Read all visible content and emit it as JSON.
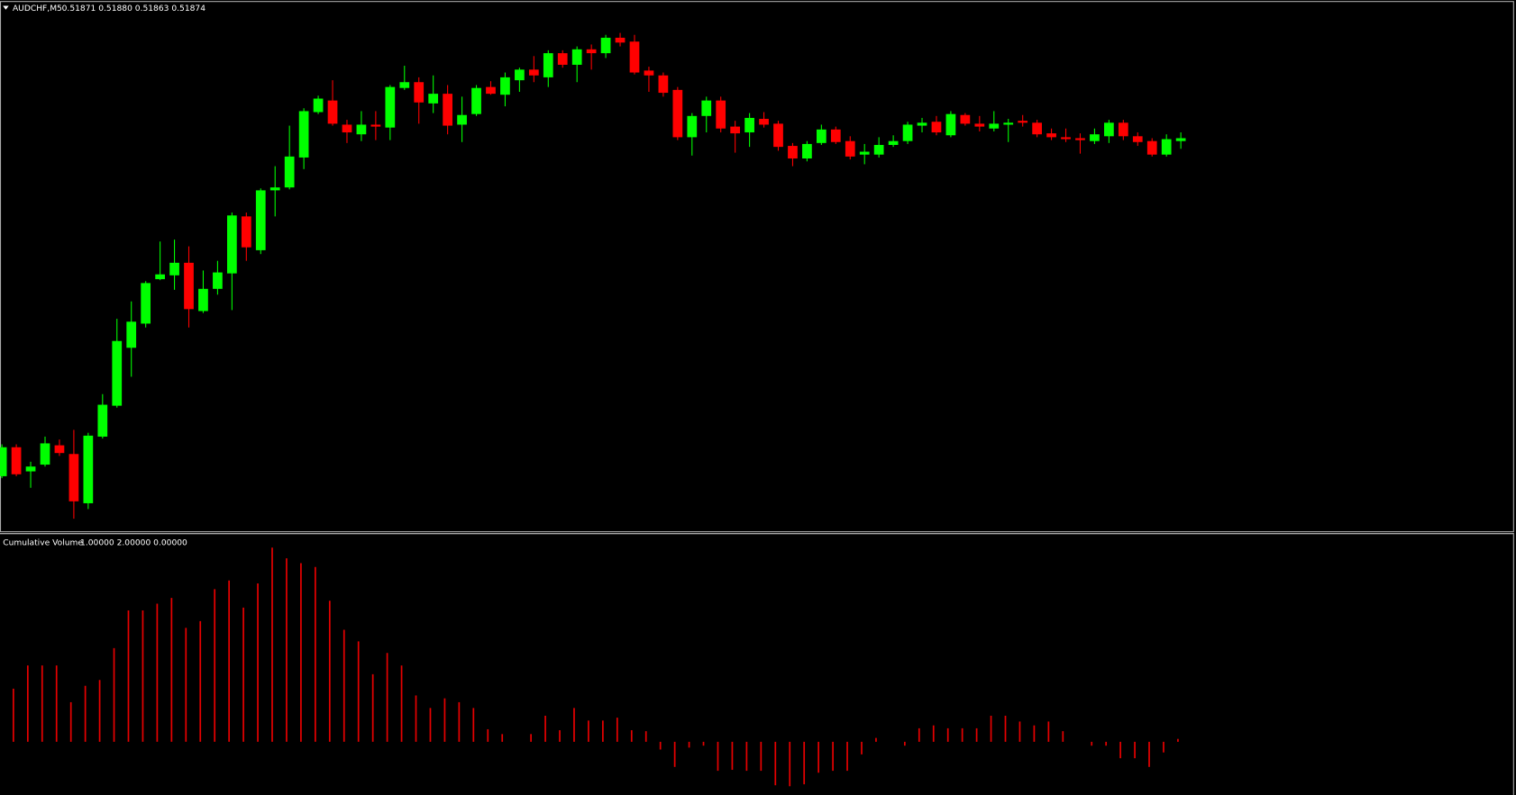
{
  "chart_data": [
    {
      "type": "candlestick",
      "title": "AUDCHF,M5",
      "quote": "0.51871 0.51880 0.51863 0.51874",
      "up_color": "#00ff00",
      "down_color": "#ff0000",
      "ylim": [
        0.51467,
        0.52017
      ],
      "open": [
        0.51524,
        0.51554,
        0.51529,
        0.51536,
        0.51556,
        0.51547,
        0.51496,
        0.51565,
        0.51597,
        0.51657,
        0.51682,
        0.51728,
        0.51732,
        0.51745,
        0.51695,
        0.51718,
        0.51734,
        0.51793,
        0.51758,
        0.5182,
        0.51823,
        0.51854,
        0.51901,
        0.51913,
        0.51888,
        0.51878,
        0.51888,
        0.51885,
        0.51926,
        0.51932,
        0.5191,
        0.5192,
        0.51888,
        0.51899,
        0.51927,
        0.51919,
        0.51934,
        0.51945,
        0.51937,
        0.51962,
        0.5195,
        0.51966,
        0.51962,
        0.51978,
        0.51974,
        0.51944,
        0.51939,
        0.51924,
        0.51875,
        0.51897,
        0.51913,
        0.51886,
        0.5188,
        0.51894,
        0.51889,
        0.51866,
        0.51853,
        0.51869,
        0.51883,
        0.51871,
        0.51857,
        0.51857,
        0.51867,
        0.51871,
        0.51887,
        0.51891,
        0.51877,
        0.51898,
        0.51889,
        0.51884,
        0.51888,
        0.51892,
        0.5189,
        0.51879,
        0.51875,
        0.51874,
        0.51871,
        0.51876,
        0.5189,
        0.51876,
        0.51871,
        0.51857,
        0.51871
      ],
      "high": [
        0.51557,
        0.51557,
        0.51539,
        0.51565,
        0.51562,
        0.51572,
        0.51569,
        0.51609,
        0.51687,
        0.51705,
        0.51726,
        0.51767,
        0.51769,
        0.51762,
        0.51737,
        0.51747,
        0.51797,
        0.51797,
        0.51822,
        0.51845,
        0.51887,
        0.51905,
        0.51918,
        0.51934,
        0.51893,
        0.51902,
        0.51902,
        0.51929,
        0.51949,
        0.51937,
        0.51939,
        0.51929,
        0.51917,
        0.51929,
        0.51933,
        0.51942,
        0.51947,
        0.51959,
        0.51965,
        0.51965,
        0.51969,
        0.51971,
        0.51981,
        0.51983,
        0.51981,
        0.51948,
        0.51942,
        0.51927,
        0.519,
        0.51917,
        0.51917,
        0.51892,
        0.519,
        0.51901,
        0.51892,
        0.51869,
        0.51871,
        0.51888,
        0.51886,
        0.51876,
        0.51868,
        0.51875,
        0.51877,
        0.51891,
        0.51895,
        0.51897,
        0.51902,
        0.519,
        0.51897,
        0.51902,
        0.51894,
        0.51898,
        0.51893,
        0.51884,
        0.51884,
        0.51879,
        0.51884,
        0.51893,
        0.51893,
        0.5188,
        0.51874,
        0.51878,
        0.5188
      ],
      "low": [
        0.51522,
        0.51524,
        0.51512,
        0.51534,
        0.51545,
        0.5148,
        0.5149,
        0.51563,
        0.51595,
        0.51627,
        0.51678,
        0.51727,
        0.51717,
        0.51678,
        0.51693,
        0.51712,
        0.51696,
        0.51747,
        0.51754,
        0.51793,
        0.51821,
        0.51842,
        0.51899,
        0.51887,
        0.51869,
        0.51871,
        0.51872,
        0.51872,
        0.51924,
        0.51889,
        0.519,
        0.51878,
        0.5187,
        0.51897,
        0.51919,
        0.51907,
        0.51922,
        0.51932,
        0.51927,
        0.51947,
        0.51932,
        0.51945,
        0.51957,
        0.51969,
        0.5194,
        0.51922,
        0.51917,
        0.51872,
        0.51856,
        0.5188,
        0.5188,
        0.51859,
        0.51865,
        0.51885,
        0.51861,
        0.51845,
        0.5185,
        0.51867,
        0.51868,
        0.51852,
        0.51847,
        0.51854,
        0.51865,
        0.51868,
        0.5188,
        0.51877,
        0.51875,
        0.51887,
        0.51881,
        0.51881,
        0.5187,
        0.51886,
        0.51875,
        0.51872,
        0.5187,
        0.51858,
        0.51868,
        0.51869,
        0.51872,
        0.51866,
        0.51855,
        0.51855,
        0.51863
      ],
      "close": [
        0.51554,
        0.51526,
        0.51534,
        0.51558,
        0.51548,
        0.51498,
        0.51566,
        0.51598,
        0.51664,
        0.51684,
        0.51724,
        0.51733,
        0.51745,
        0.51697,
        0.51718,
        0.51735,
        0.51794,
        0.51761,
        0.5182,
        0.51823,
        0.51855,
        0.51902,
        0.51915,
        0.51889,
        0.5188,
        0.51888,
        0.51886,
        0.51927,
        0.51932,
        0.51911,
        0.5192,
        0.51887,
        0.51898,
        0.51926,
        0.5192,
        0.51937,
        0.51945,
        0.51939,
        0.51962,
        0.5195,
        0.51966,
        0.51962,
        0.51978,
        0.51973,
        0.51942,
        0.51939,
        0.51921,
        0.51875,
        0.51897,
        0.51913,
        0.51884,
        0.51879,
        0.51895,
        0.51888,
        0.51865,
        0.51853,
        0.51868,
        0.51883,
        0.5187,
        0.51855,
        0.5186,
        0.51867,
        0.51871,
        0.51888,
        0.5189,
        0.5188,
        0.51899,
        0.51889,
        0.51886,
        0.51889,
        0.5189,
        0.5189,
        0.51878,
        0.51875,
        0.51873,
        0.51872,
        0.51878,
        0.5189,
        0.51876,
        0.5187,
        0.51857,
        0.51873,
        0.51874
      ]
    },
    {
      "type": "histogram",
      "title": "Cumulative Volume",
      "params": "1.00000 2.00000 0.00000",
      "color": "#e60000",
      "ylim": [
        -55,
        215
      ],
      "values": [
        null,
        55,
        79,
        79,
        79,
        41,
        58,
        64,
        97,
        136,
        136,
        143,
        149,
        118,
        125,
        158,
        167,
        139,
        164,
        201,
        190,
        185,
        181,
        146,
        116,
        104,
        70,
        92,
        79,
        48,
        35,
        45,
        41,
        35,
        13,
        8,
        0,
        8,
        27,
        12,
        35,
        22,
        22,
        25,
        12,
        11,
        -8,
        -26,
        -6,
        -4,
        -30,
        -29,
        -30,
        -30,
        -45,
        -46,
        -44,
        -32,
        -30,
        -30,
        -13,
        4,
        0,
        -4,
        14,
        17,
        14,
        14,
        14,
        27,
        27,
        21,
        17,
        21,
        11,
        0,
        -4,
        -4,
        -17,
        -17,
        -26,
        -11,
        3
      ]
    }
  ]
}
